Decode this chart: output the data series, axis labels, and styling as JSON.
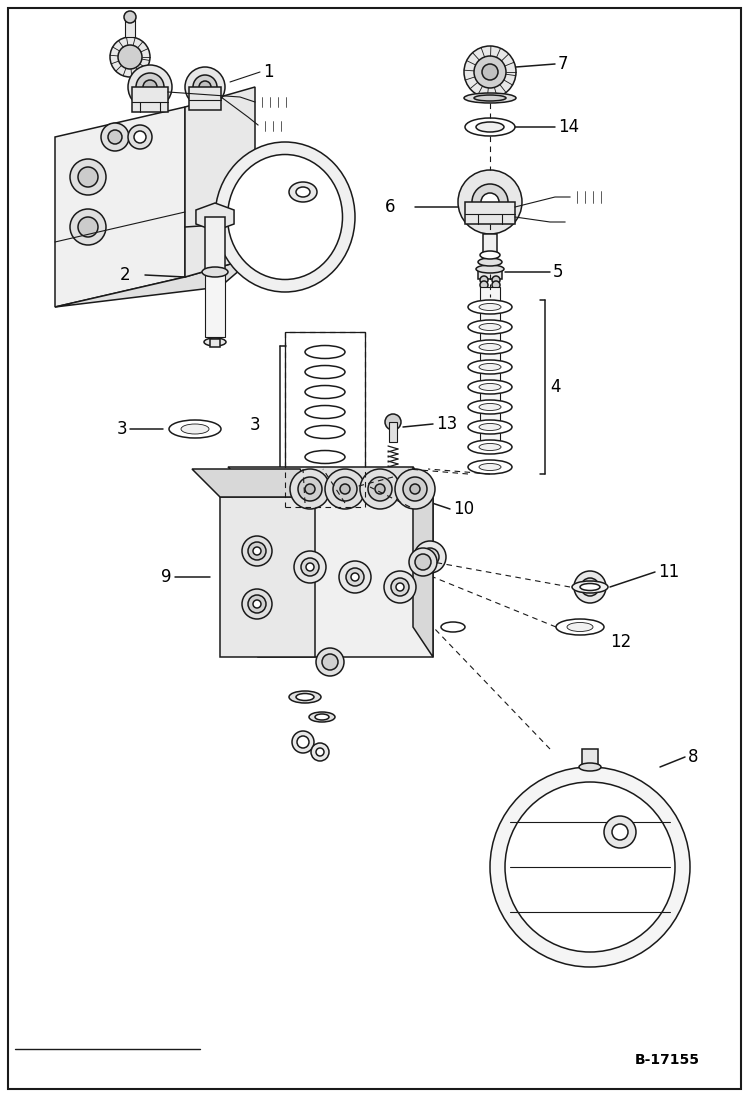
{
  "bg_color": "#ffffff",
  "line_color": "#1a1a1a",
  "label_color": "#000000",
  "ref_code": "B-17155",
  "fig_w": 7.49,
  "fig_h": 10.97,
  "dpi": 100
}
